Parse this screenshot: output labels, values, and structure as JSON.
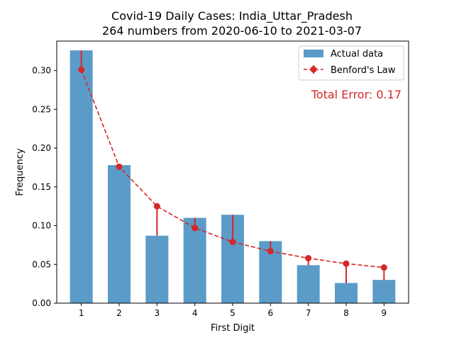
{
  "chart_data": {
    "type": "bar",
    "title_line1": "Covid-19 Daily Cases: India_Uttar_Pradesh",
    "title_line2": "264 numbers from 2020-06-10 to 2021-03-07",
    "xlabel": "First Digit",
    "ylabel": "Frequency",
    "categories": [
      "1",
      "2",
      "3",
      "4",
      "5",
      "6",
      "7",
      "8",
      "9"
    ],
    "x": [
      1,
      2,
      3,
      4,
      5,
      6,
      7,
      8,
      9
    ],
    "ylim": [
      0,
      0.338
    ],
    "xlim": [
      0.35,
      9.65
    ],
    "yticks": [
      0.0,
      0.05,
      0.1,
      0.15,
      0.2,
      0.25,
      0.3
    ],
    "ytick_labels": [
      "0.00",
      "0.05",
      "0.10",
      "0.15",
      "0.20",
      "0.25",
      "0.30"
    ],
    "series": [
      {
        "name": "Actual data",
        "kind": "bar",
        "color": "#5b9bc8",
        "values": [
          0.326,
          0.178,
          0.087,
          0.11,
          0.114,
          0.08,
          0.049,
          0.026,
          0.03
        ]
      },
      {
        "name": "Benford's Law",
        "kind": "line-dashed-markers",
        "color": "#d62728",
        "values": [
          0.301,
          0.176,
          0.125,
          0.097,
          0.079,
          0.067,
          0.058,
          0.051,
          0.046
        ]
      }
    ],
    "annotation": "Total Error: 0.17",
    "annotation_color": "#d62728",
    "legend_position": "top-right",
    "grid": false
  }
}
